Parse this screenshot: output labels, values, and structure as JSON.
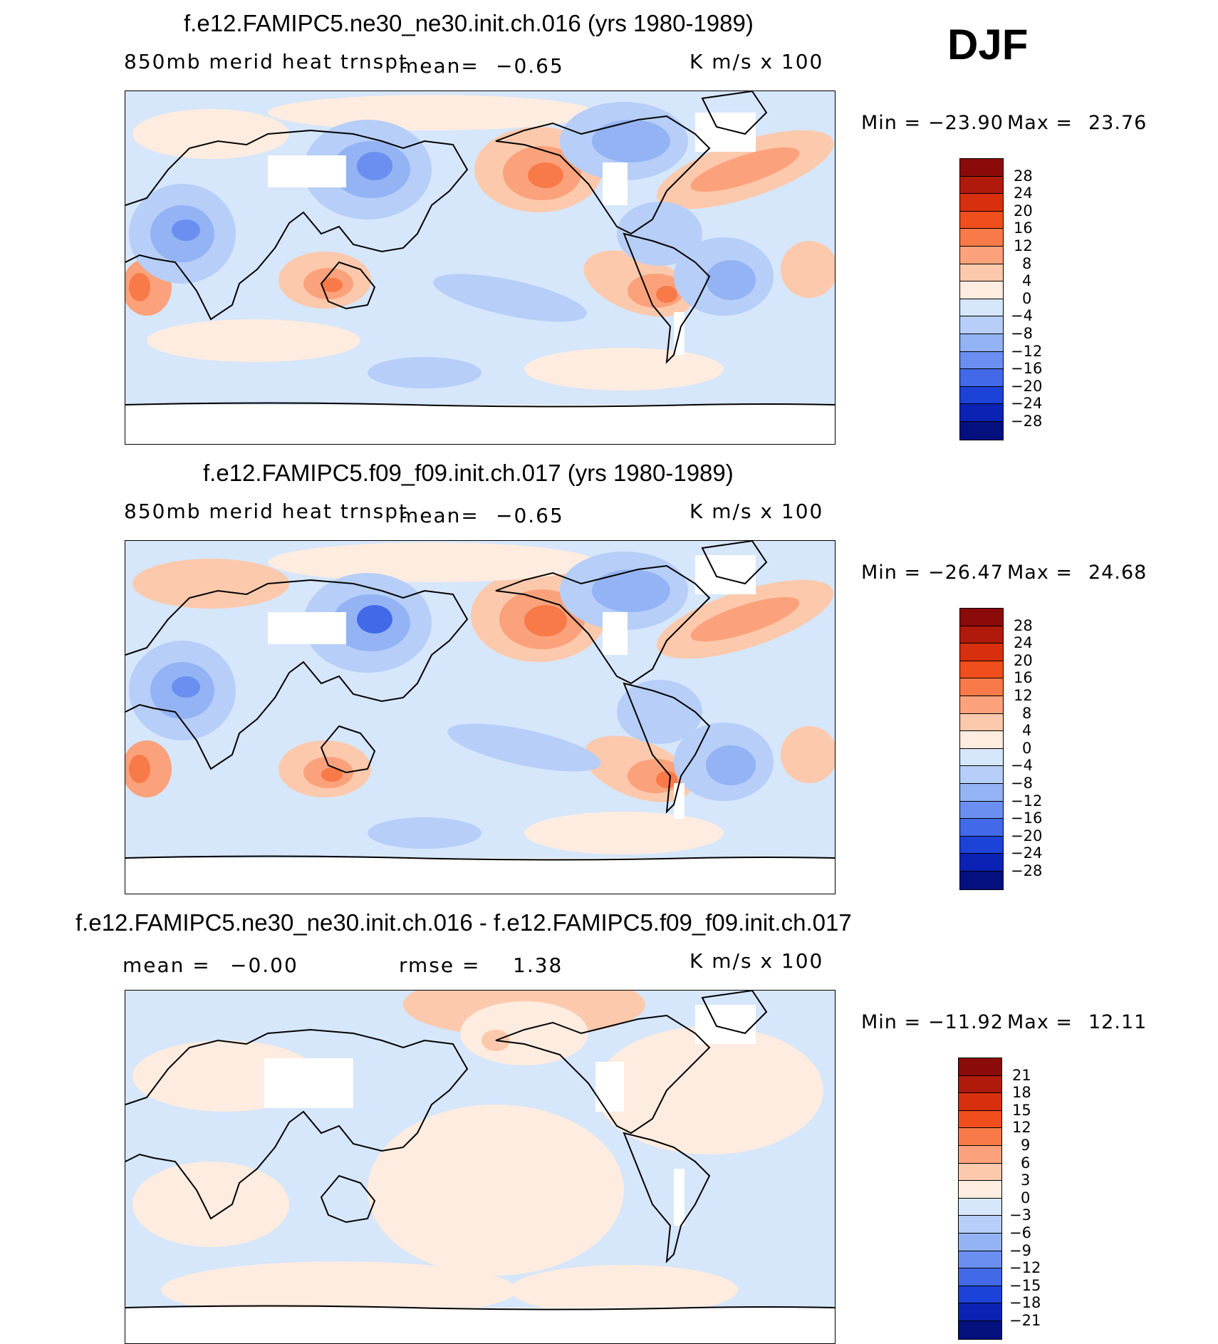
{
  "season": "DJF",
  "panels": [
    {
      "title": "f.e12.FAMIPC5.ne30_ne30.init.ch.016 (yrs 1980-1989)",
      "left_label": "850mb merid heat trnspt",
      "mean_label": "mean=",
      "mean_value": "−0.65",
      "units": "K m/s x 100",
      "min_label": "Min =",
      "min_value": "−23.90",
      "max_label": "Max =",
      "max_value": "23.76",
      "colorbar": {
        "labels": [
          "28",
          "24",
          "20",
          "16",
          "12",
          "8",
          "4",
          "0",
          "−4",
          "−8",
          "−12",
          "−16",
          "−20",
          "−24",
          "−28"
        ],
        "colors": [
          "#8b0a0a",
          "#b01a0a",
          "#d8300f",
          "#f04e1c",
          "#f87a48",
          "#fba27c",
          "#fdc9ac",
          "#fdecdf",
          "#d6e6fb",
          "#b6cef8",
          "#93b3f4",
          "#6b8ff0",
          "#4169e8",
          "#1c42d8",
          "#0a23b4",
          "#04107e"
        ]
      }
    },
    {
      "title": "f.e12.FAMIPC5.f09_f09.init.ch.017 (yrs 1980-1989)",
      "left_label": "850mb merid heat trnspt",
      "mean_label": "mean=",
      "mean_value": "−0.65",
      "units": "K m/s x 100",
      "min_label": "Min =",
      "min_value": "−26.47",
      "max_label": "Max =",
      "max_value": "24.68",
      "colorbar": {
        "labels": [
          "28",
          "24",
          "20",
          "16",
          "12",
          "8",
          "4",
          "0",
          "−4",
          "−8",
          "−12",
          "−16",
          "−20",
          "−24",
          "−28"
        ],
        "colors": [
          "#8b0a0a",
          "#b01a0a",
          "#d8300f",
          "#f04e1c",
          "#f87a48",
          "#fba27c",
          "#fdc9ac",
          "#fdecdf",
          "#d6e6fb",
          "#b6cef8",
          "#93b3f4",
          "#6b8ff0",
          "#4169e8",
          "#1c42d8",
          "#0a23b4",
          "#04107e"
        ]
      }
    },
    {
      "title": "f.e12.FAMIPC5.ne30_ne30.init.ch.016 - f.e12.FAMIPC5.f09_f09.init.ch.017",
      "mean_label": "mean =",
      "mean_value": "−0.00",
      "rmse_label": "rmse =",
      "rmse_value": "1.38",
      "units": "K m/s x 100",
      "min_label": "Min =",
      "min_value": "−11.92",
      "max_label": "Max =",
      "max_value": "12.11",
      "colorbar": {
        "labels": [
          "21",
          "18",
          "15",
          "12",
          "9",
          "6",
          "3",
          "0",
          "−3",
          "−6",
          "−9",
          "−12",
          "−15",
          "−18",
          "−21"
        ],
        "colors": [
          "#8b0a0a",
          "#b01a0a",
          "#d8300f",
          "#f04e1c",
          "#f87a48",
          "#fba27c",
          "#fdc9ac",
          "#fdecdf",
          "#d6e6fb",
          "#b6cef8",
          "#93b3f4",
          "#6b8ff0",
          "#4169e8",
          "#1c42d8",
          "#0a23b4",
          "#04107e"
        ]
      }
    }
  ]
}
